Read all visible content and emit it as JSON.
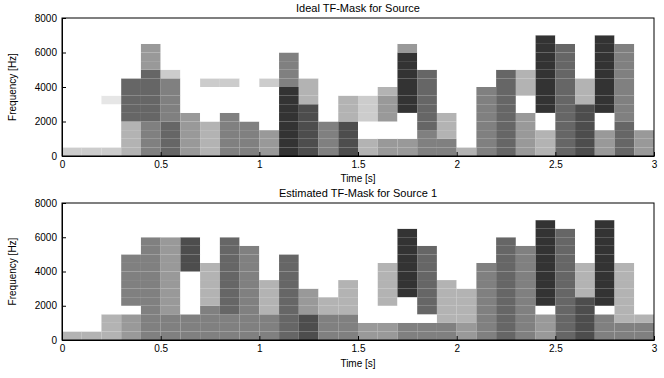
{
  "chart_data": [
    {
      "type": "heatmap",
      "title": "Ideal TF-Mask for Source",
      "x_label": "Time [s]",
      "y_label": "Frequency [Hz]",
      "xlim": [
        0,
        3
      ],
      "xticks": [
        0,
        0.5,
        1,
        1.5,
        2,
        2.5,
        3
      ],
      "ylim": [
        0,
        8000
      ],
      "yticks": [
        0,
        2000,
        4000,
        6000,
        8000
      ],
      "grid": false,
      "color": "#000000",
      "time_bins": [
        0,
        0.1,
        0.2,
        0.3,
        0.4,
        0.5,
        0.6,
        0.7,
        0.8,
        0.9,
        1,
        1.1,
        1.2,
        1.3,
        1.4,
        1.5,
        1.6,
        1.7,
        1.8,
        1.9,
        2,
        2.1,
        2.2,
        2.3,
        2.4,
        2.5,
        2.6,
        2.7,
        2.8,
        2.9,
        3
      ],
      "freq_bins": [
        0,
        500,
        1000,
        1500,
        2000,
        2500,
        3000,
        3500,
        4000,
        4500,
        5000,
        5500,
        6000,
        6500,
        7000,
        7500,
        8000
      ],
      "cells": [
        [
          0.2,
          0,
          0,
          0,
          0,
          0,
          0,
          0,
          0,
          0,
          0,
          0,
          0,
          0,
          0,
          0
        ],
        [
          0.2,
          0,
          0,
          0,
          0,
          0,
          0,
          0,
          0,
          0,
          0,
          0,
          0,
          0,
          0,
          0
        ],
        [
          0.2,
          0,
          0,
          0,
          0,
          0,
          0.1,
          0,
          0,
          0,
          0,
          0,
          0,
          0,
          0,
          0
        ],
        [
          0.3,
          0.3,
          0.3,
          0.3,
          0.6,
          0.6,
          0.6,
          0.6,
          0.6,
          0,
          0,
          0,
          0,
          0,
          0,
          0
        ],
        [
          0.5,
          0.5,
          0.5,
          0.5,
          0.6,
          0.6,
          0.6,
          0.6,
          0.6,
          0.6,
          0.4,
          0.4,
          0.4,
          0,
          0,
          0
        ],
        [
          0.6,
          0.6,
          0.6,
          0.6,
          0.5,
          0.5,
          0.5,
          0.5,
          0.5,
          0.2,
          0,
          0,
          0,
          0,
          0,
          0
        ],
        [
          0.4,
          0.4,
          0.4,
          0.4,
          0.4,
          0,
          0,
          0,
          0,
          0,
          0,
          0,
          0,
          0,
          0,
          0
        ],
        [
          0.3,
          0.3,
          0.3,
          0.3,
          0,
          0,
          0,
          0,
          0.2,
          0,
          0,
          0,
          0,
          0,
          0,
          0
        ],
        [
          0.5,
          0.5,
          0.5,
          0.5,
          0.5,
          0,
          0,
          0,
          0.2,
          0,
          0,
          0,
          0,
          0,
          0,
          0
        ],
        [
          0.5,
          0.5,
          0.5,
          0.5,
          0,
          0,
          0,
          0,
          0,
          0,
          0,
          0,
          0,
          0,
          0,
          0
        ],
        [
          0.4,
          0.4,
          0.4,
          0,
          0,
          0,
          0,
          0,
          0.2,
          0,
          0,
          0,
          0,
          0,
          0,
          0
        ],
        [
          0.8,
          0.8,
          0.8,
          0.8,
          0.8,
          0.8,
          0.8,
          0.8,
          0.5,
          0.5,
          0.5,
          0.5,
          0,
          0,
          0,
          0
        ],
        [
          0.7,
          0.7,
          0.7,
          0.7,
          0.7,
          0.7,
          0.3,
          0.3,
          0.3,
          0,
          0,
          0,
          0,
          0,
          0,
          0
        ],
        [
          0.5,
          0.5,
          0.5,
          0.5,
          0,
          0,
          0,
          0,
          0,
          0,
          0,
          0,
          0,
          0,
          0,
          0
        ],
        [
          0.7,
          0.7,
          0.7,
          0.7,
          0.3,
          0.3,
          0.3,
          0,
          0,
          0,
          0,
          0,
          0,
          0,
          0,
          0
        ],
        [
          0.3,
          0.3,
          0,
          0,
          0.2,
          0.2,
          0.2,
          0,
          0,
          0,
          0,
          0,
          0,
          0,
          0,
          0
        ],
        [
          0.4,
          0.4,
          0,
          0,
          0.4,
          0.4,
          0.4,
          0.3,
          0,
          0,
          0,
          0,
          0,
          0,
          0,
          0
        ],
        [
          0.4,
          0.4,
          0,
          0,
          0,
          0.8,
          0.8,
          0.8,
          0.8,
          0.8,
          0.8,
          0.8,
          0.4,
          0,
          0,
          0
        ],
        [
          0.5,
          0.5,
          0.5,
          0.6,
          0.6,
          0.6,
          0.6,
          0.6,
          0.6,
          0.6,
          0,
          0,
          0,
          0,
          0,
          0
        ],
        [
          0.5,
          0.5,
          0.3,
          0.3,
          0.3,
          0,
          0,
          0,
          0,
          0,
          0,
          0,
          0,
          0,
          0,
          0
        ],
        [
          0.3,
          0,
          0,
          0,
          0,
          0,
          0,
          0,
          0,
          0,
          0,
          0,
          0,
          0,
          0,
          0
        ],
        [
          0.5,
          0.5,
          0.5,
          0.5,
          0.5,
          0.5,
          0.5,
          0.5,
          0,
          0,
          0,
          0,
          0,
          0,
          0,
          0
        ],
        [
          0.6,
          0.6,
          0.6,
          0.6,
          0.6,
          0.6,
          0.6,
          0.6,
          0.6,
          0.6,
          0,
          0,
          0,
          0,
          0,
          0
        ],
        [
          0.4,
          0.4,
          0.4,
          0.4,
          0.4,
          0,
          0,
          0.3,
          0.3,
          0.3,
          0,
          0,
          0,
          0,
          0,
          0
        ],
        [
          0.3,
          0.3,
          0.3,
          0,
          0,
          0.8,
          0.8,
          0.8,
          0.8,
          0.8,
          0.8,
          0.8,
          0.8,
          0.8,
          0,
          0
        ],
        [
          0.6,
          0.6,
          0.6,
          0.6,
          0.6,
          0.6,
          0.6,
          0.6,
          0.6,
          0.6,
          0.6,
          0.6,
          0.6,
          0,
          0,
          0
        ],
        [
          0.7,
          0.7,
          0.7,
          0.7,
          0.7,
          0.7,
          0.3,
          0.3,
          0.3,
          0,
          0,
          0,
          0,
          0,
          0,
          0
        ],
        [
          0.4,
          0.4,
          0.4,
          0,
          0,
          0.8,
          0.8,
          0.8,
          0.8,
          0.8,
          0.8,
          0.8,
          0.8,
          0.8,
          0,
          0
        ],
        [
          0.6,
          0.6,
          0.6,
          0.6,
          0.5,
          0.5,
          0.5,
          0.5,
          0.5,
          0.5,
          0.5,
          0.5,
          0.5,
          0,
          0,
          0
        ],
        [
          0.4,
          0.4,
          0.4,
          0,
          0,
          0,
          0,
          0,
          0,
          0,
          0,
          0,
          0,
          0,
          0,
          0
        ]
      ]
    },
    {
      "type": "heatmap",
      "title": "Estimated TF-Mask for Source 1",
      "x_label": "Time [s]",
      "y_label": "Frequency [Hz]",
      "xlim": [
        0,
        3
      ],
      "xticks": [
        0,
        0.5,
        1,
        1.5,
        2,
        2.5,
        3
      ],
      "ylim": [
        0,
        8000
      ],
      "yticks": [
        0,
        2000,
        4000,
        6000,
        8000
      ],
      "grid": false,
      "color": "#000000",
      "time_bins": [
        0,
        0.1,
        0.2,
        0.3,
        0.4,
        0.5,
        0.6,
        0.7,
        0.8,
        0.9,
        1,
        1.1,
        1.2,
        1.3,
        1.4,
        1.5,
        1.6,
        1.7,
        1.8,
        1.9,
        2,
        2.1,
        2.2,
        2.3,
        2.4,
        2.5,
        2.6,
        2.7,
        2.8,
        2.9,
        3
      ],
      "freq_bins": [
        0,
        500,
        1000,
        1500,
        2000,
        2500,
        3000,
        3500,
        4000,
        4500,
        5000,
        5500,
        6000,
        6500,
        7000,
        7500,
        8000
      ],
      "cells": [
        [
          0.3,
          0,
          0,
          0,
          0,
          0,
          0,
          0,
          0,
          0,
          0,
          0,
          0,
          0,
          0,
          0
        ],
        [
          0.3,
          0,
          0,
          0,
          0,
          0,
          0,
          0,
          0,
          0,
          0,
          0,
          0,
          0,
          0,
          0
        ],
        [
          0.3,
          0.3,
          0.3,
          0,
          0,
          0,
          0,
          0,
          0,
          0,
          0,
          0,
          0,
          0,
          0,
          0
        ],
        [
          0.4,
          0.4,
          0.4,
          0,
          0.5,
          0.5,
          0.5,
          0.5,
          0.5,
          0.5,
          0,
          0,
          0,
          0,
          0,
          0
        ],
        [
          0.5,
          0.5,
          0.5,
          0.5,
          0.5,
          0.5,
          0.5,
          0.5,
          0.5,
          0.5,
          0.5,
          0.5,
          0,
          0,
          0,
          0
        ],
        [
          0.5,
          0.5,
          0.5,
          0.4,
          0.4,
          0.4,
          0.4,
          0.4,
          0.4,
          0.4,
          0.4,
          0.4,
          0,
          0,
          0,
          0
        ],
        [
          0.5,
          0.5,
          0.5,
          0,
          0,
          0,
          0,
          0,
          0.7,
          0.7,
          0.7,
          0.7,
          0,
          0,
          0,
          0
        ],
        [
          0.5,
          0.5,
          0.5,
          0.5,
          0.3,
          0.3,
          0.3,
          0.3,
          0.3,
          0,
          0,
          0,
          0,
          0,
          0,
          0
        ],
        [
          0.5,
          0.5,
          0.5,
          0.6,
          0.6,
          0.6,
          0.6,
          0.6,
          0.6,
          0.6,
          0.6,
          0.6,
          0,
          0,
          0,
          0
        ],
        [
          0.5,
          0.5,
          0.5,
          0.5,
          0.5,
          0.5,
          0.5,
          0.5,
          0.5,
          0.5,
          0.5,
          0,
          0,
          0,
          0,
          0
        ],
        [
          0.5,
          0.5,
          0.5,
          0.3,
          0.3,
          0.3,
          0.3,
          0,
          0,
          0,
          0,
          0,
          0,
          0,
          0,
          0
        ],
        [
          0.6,
          0.6,
          0.6,
          0.6,
          0.6,
          0.6,
          0.6,
          0.6,
          0.6,
          0.6,
          0,
          0,
          0,
          0,
          0,
          0
        ],
        [
          0.7,
          0.7,
          0.7,
          0.4,
          0.4,
          0.4,
          0,
          0,
          0,
          0,
          0,
          0,
          0,
          0,
          0,
          0
        ],
        [
          0.5,
          0.5,
          0.5,
          0.3,
          0.3,
          0,
          0,
          0,
          0,
          0,
          0,
          0,
          0,
          0,
          0,
          0
        ],
        [
          0.5,
          0.5,
          0.5,
          0.3,
          0.3,
          0.3,
          0.3,
          0,
          0,
          0,
          0,
          0,
          0,
          0,
          0,
          0
        ],
        [
          0.4,
          0.4,
          0,
          0,
          0,
          0,
          0,
          0,
          0,
          0,
          0,
          0,
          0,
          0,
          0,
          0
        ],
        [
          0.4,
          0.4,
          0,
          0,
          0.3,
          0.3,
          0.3,
          0.3,
          0.3,
          0,
          0,
          0,
          0,
          0,
          0,
          0
        ],
        [
          0.5,
          0.5,
          0,
          0,
          0,
          0.8,
          0.8,
          0.8,
          0.8,
          0.8,
          0.8,
          0.8,
          0.8,
          0,
          0,
          0
        ],
        [
          0.5,
          0.5,
          0,
          0.6,
          0.6,
          0.6,
          0.6,
          0.6,
          0.6,
          0.6,
          0.6,
          0,
          0,
          0,
          0,
          0
        ],
        [
          0.5,
          0.5,
          0.3,
          0.3,
          0.3,
          0.3,
          0.3,
          0,
          0,
          0,
          0,
          0,
          0,
          0,
          0,
          0
        ],
        [
          0.4,
          0.4,
          0.3,
          0.3,
          0.3,
          0.3,
          0,
          0,
          0,
          0,
          0,
          0,
          0,
          0,
          0,
          0
        ],
        [
          0.5,
          0.5,
          0.5,
          0.5,
          0.5,
          0.5,
          0.5,
          0.5,
          0.5,
          0,
          0,
          0,
          0,
          0,
          0,
          0
        ],
        [
          0.6,
          0.6,
          0.6,
          0.6,
          0.6,
          0.6,
          0.6,
          0.6,
          0.6,
          0.6,
          0.6,
          0.6,
          0,
          0,
          0,
          0
        ],
        [
          0.5,
          0.5,
          0.5,
          0.5,
          0.5,
          0.5,
          0.5,
          0.5,
          0.5,
          0.5,
          0.5,
          0,
          0,
          0,
          0,
          0
        ],
        [
          0.4,
          0.4,
          0.4,
          0,
          0.8,
          0.8,
          0.8,
          0.8,
          0.8,
          0.8,
          0.8,
          0.8,
          0.8,
          0.8,
          0,
          0
        ],
        [
          0.6,
          0.6,
          0.6,
          0.6,
          0.6,
          0.6,
          0.6,
          0.6,
          0.6,
          0.6,
          0.6,
          0.6,
          0.6,
          0,
          0,
          0
        ],
        [
          0.7,
          0.7,
          0.7,
          0.7,
          0.7,
          0.3,
          0.3,
          0.3,
          0.3,
          0,
          0,
          0,
          0,
          0,
          0,
          0
        ],
        [
          0.5,
          0.5,
          0.5,
          0,
          0.8,
          0.8,
          0.8,
          0.8,
          0.8,
          0.8,
          0.8,
          0.8,
          0.8,
          0.8,
          0,
          0
        ],
        [
          0.5,
          0.5,
          0.3,
          0.3,
          0.3,
          0.3,
          0.3,
          0.3,
          0.3,
          0,
          0,
          0,
          0,
          0,
          0,
          0
        ],
        [
          0.5,
          0.5,
          0.3,
          0,
          0,
          0,
          0,
          0,
          0,
          0,
          0,
          0,
          0,
          0,
          0,
          0
        ]
      ]
    }
  ]
}
